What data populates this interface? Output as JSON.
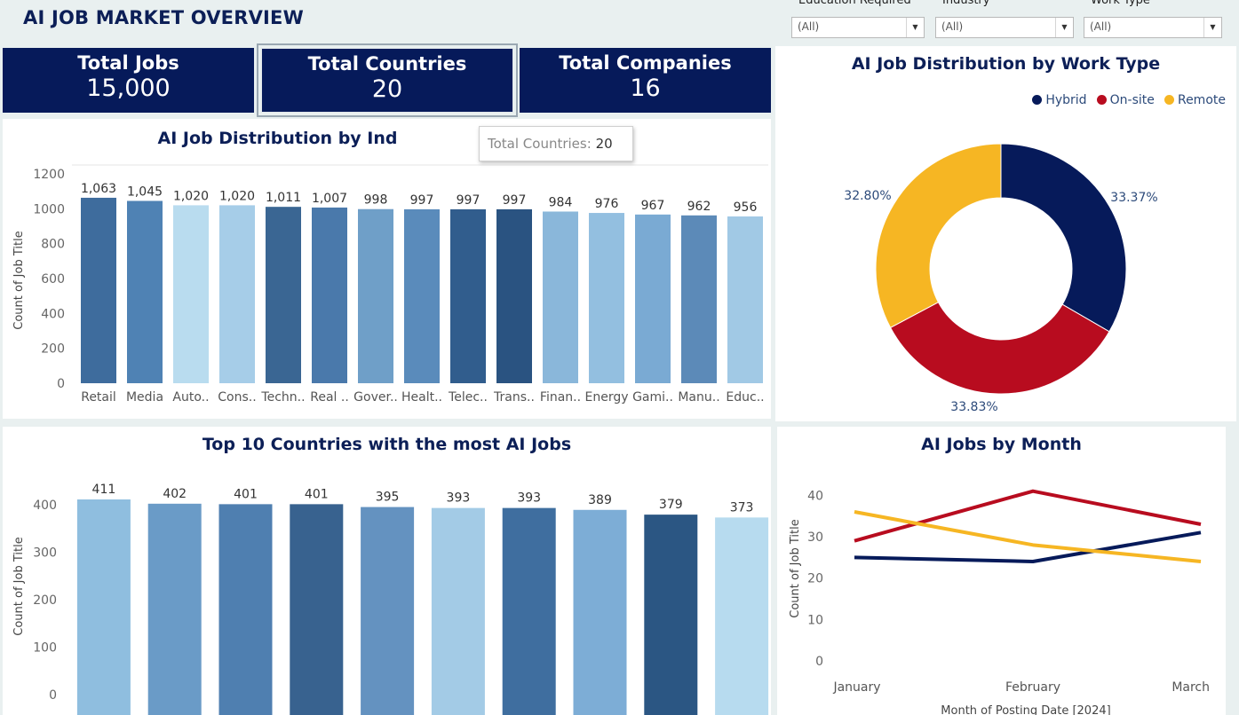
{
  "dashboard": {
    "title": "AI JOB MARKET OVERVIEW"
  },
  "filters": [
    {
      "label": "Education Required",
      "value": "(All)"
    },
    {
      "label": "Industry",
      "value": "(All)"
    },
    {
      "label": "Work Type",
      "value": "(All)"
    }
  ],
  "kpis": [
    {
      "label": "Total Jobs",
      "value": "15,000"
    },
    {
      "label": "Total Countries",
      "value": "20"
    },
    {
      "label": "Total Companies",
      "value": "16"
    }
  ],
  "tooltip": {
    "label": "Total Countries:",
    "value": "20"
  },
  "colors": {
    "navy": "#061a5a",
    "hybrid": "#061a5a",
    "onsite": "#b80c1f",
    "remote": "#f6b623"
  },
  "chart_data": [
    {
      "type": "bar",
      "title": "AI Job Distribution by Industry",
      "title_visible": "AI Job Distribution by Ind",
      "ylabel": "Count of Job Title",
      "ylim": [
        0,
        1200
      ],
      "yticks": [
        0,
        200,
        400,
        600,
        800,
        1000,
        1200
      ],
      "categories": [
        "Retail",
        "Media",
        "Auto..",
        "Cons..",
        "Techn..",
        "Real ..",
        "Gover..",
        "Healt..",
        "Telec..",
        "Trans..",
        "Finan..",
        "Energy",
        "Gami..",
        "Manu..",
        "Educ.."
      ],
      "values": [
        1063,
        1045,
        1020,
        1020,
        1011,
        1007,
        998,
        997,
        997,
        997,
        984,
        976,
        967,
        962,
        956
      ],
      "value_labels": [
        "1,063",
        "1,045",
        "1,020",
        "1,020",
        "1,011",
        "1,007",
        "998",
        "997",
        "997",
        "997",
        "984",
        "976",
        "967",
        "962",
        "956"
      ],
      "bar_colors": [
        "#3e6c9d",
        "#4f82b4",
        "#b9dcef",
        "#a6cde8",
        "#3a6693",
        "#4a79ab",
        "#6f9fc8",
        "#5a8bbb",
        "#315d8d",
        "#2a5381",
        "#8ab7da",
        "#93bfe0",
        "#7aaad3",
        "#5c8ab8",
        "#a1c9e5"
      ]
    },
    {
      "type": "pie",
      "title": "AI Job Distribution by Work Type",
      "legend_position": "top-right",
      "series": [
        {
          "name": "Hybrid",
          "value": 33.37,
          "label": "33.37%"
        },
        {
          "name": "On-site",
          "value": 33.83,
          "label": "33.83%"
        },
        {
          "name": "Remote",
          "value": 32.8,
          "label": "32.80%"
        }
      ]
    },
    {
      "type": "bar",
      "title": "Top 10 Countries with the most AI Jobs",
      "ylabel": "Count of Job Title",
      "ylim": [
        0,
        411
      ],
      "yticks": [
        0,
        100,
        200,
        300,
        400
      ],
      "values": [
        411,
        402,
        401,
        401,
        395,
        393,
        393,
        389,
        379,
        373
      ],
      "value_labels": [
        "411",
        "402",
        "401",
        "401",
        "395",
        "393",
        "393",
        "389",
        "379",
        "373"
      ],
      "bar_colors": [
        "#8fbedf",
        "#6a9bc7",
        "#4f7fb0",
        "#38628f",
        "#6492c0",
        "#a3cbe6",
        "#3f6e9f",
        "#7dadd6",
        "#2b5683",
        "#b7dbef"
      ]
    },
    {
      "type": "line",
      "title": "AI Jobs by Month",
      "ylabel": "Count of Job Title",
      "xlabel": "Month of Posting Date [2024]",
      "x": [
        "January",
        "February",
        "March"
      ],
      "ylim": [
        0,
        42
      ],
      "yticks": [
        0,
        10,
        20,
        30,
        40
      ],
      "series": [
        {
          "name": "Hybrid",
          "values": [
            25,
            24,
            31
          ],
          "color": "#061a5a"
        },
        {
          "name": "On-site",
          "values": [
            29,
            41,
            33
          ],
          "color": "#b80c1f"
        },
        {
          "name": "Remote",
          "values": [
            36,
            28,
            24
          ],
          "color": "#f6b623"
        }
      ]
    }
  ]
}
